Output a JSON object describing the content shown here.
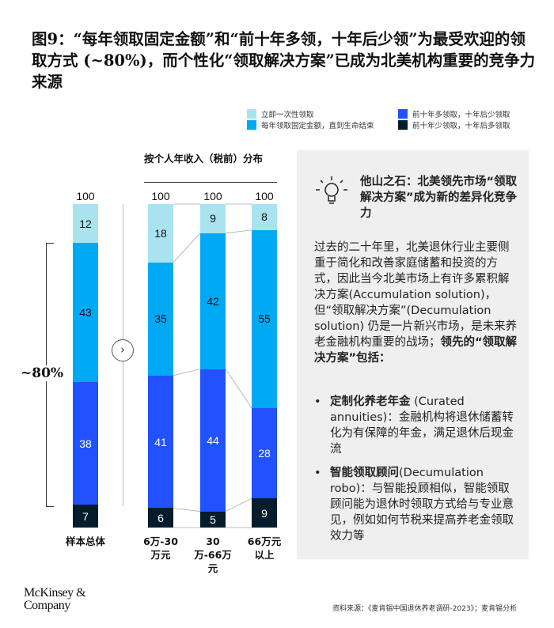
{
  "title": "图9：“每年领取固定金额”和“前十年多领，十年后少领”为最受欢迎的领取方式 (~80%)，而个性化“领取解决方案”已成为北美机构重要的竞争力来源",
  "colors": {
    "immediate": "#a9e3f0",
    "fixed": "#00a9f4",
    "front": "#2251ff",
    "back": "#051c2c"
  },
  "chart_data": {
    "type": "bar",
    "stacked": true,
    "group_label": "按个人年收入（税前）分布",
    "categories": [
      "样本总体",
      "6万-30万元",
      "30万-66万元",
      "66万元以上"
    ],
    "totals": [
      "100",
      "100",
      "100",
      "100"
    ],
    "series": [
      {
        "name": "前十年少领取，十年后多领取",
        "key": "back",
        "values": [
          7,
          6,
          5,
          9
        ]
      },
      {
        "name": "前十年多领取，十年后少领取",
        "key": "front",
        "values": [
          38,
          41,
          44,
          28
        ]
      },
      {
        "name": "每年领取固定金额，直到生命结束",
        "key": "fixed",
        "values": [
          43,
          35,
          42,
          55
        ]
      },
      {
        "name": "立即一次性领取",
        "key": "immediate",
        "values": [
          12,
          18,
          9,
          8
        ]
      }
    ],
    "legend_order": [
      "立即一次性领取",
      "每年领取固定金额，直到生命结束",
      "前十年多领取，十年后少领取",
      "前十年少领取，十年后多领取"
    ],
    "annotation": "~80%",
    "ylim": [
      0,
      100
    ]
  },
  "panel": {
    "heading": "他山之石：北美领先市场“领取解决方案”成为新的差异化竞争力",
    "body": "过去的二十年里，北美退休行业主要侧重于简化和改善家庭储蓄和投资的方式，因此当今北美市场上有许多累积解决方案(Accumulation solution)，但“领取解决方案”(Decumulation solution) 仍是一片新兴市场，是未来养老金融机构重要的战场；",
    "body_bold": "领先的“领取解决方案”包括：",
    "bullets": [
      {
        "title": "定制化养老年金",
        "rest": " (Curated annuities)：金融机构将退休储蓄转化为有保障的年金，满足退休后现金流"
      },
      {
        "title": "智能领取顾问",
        "rest": "(Decumulation robo)：与智能投顾相似，智能领取顾问能为退休时领取方式给与专业意见，例如如何节税来提高养老金领取效力等"
      }
    ]
  },
  "footer": {
    "logo": "McKinsey & Company",
    "source": "资料来源：《麦肯锡中国退休养老调研-2023》；麦肯锡分析"
  }
}
